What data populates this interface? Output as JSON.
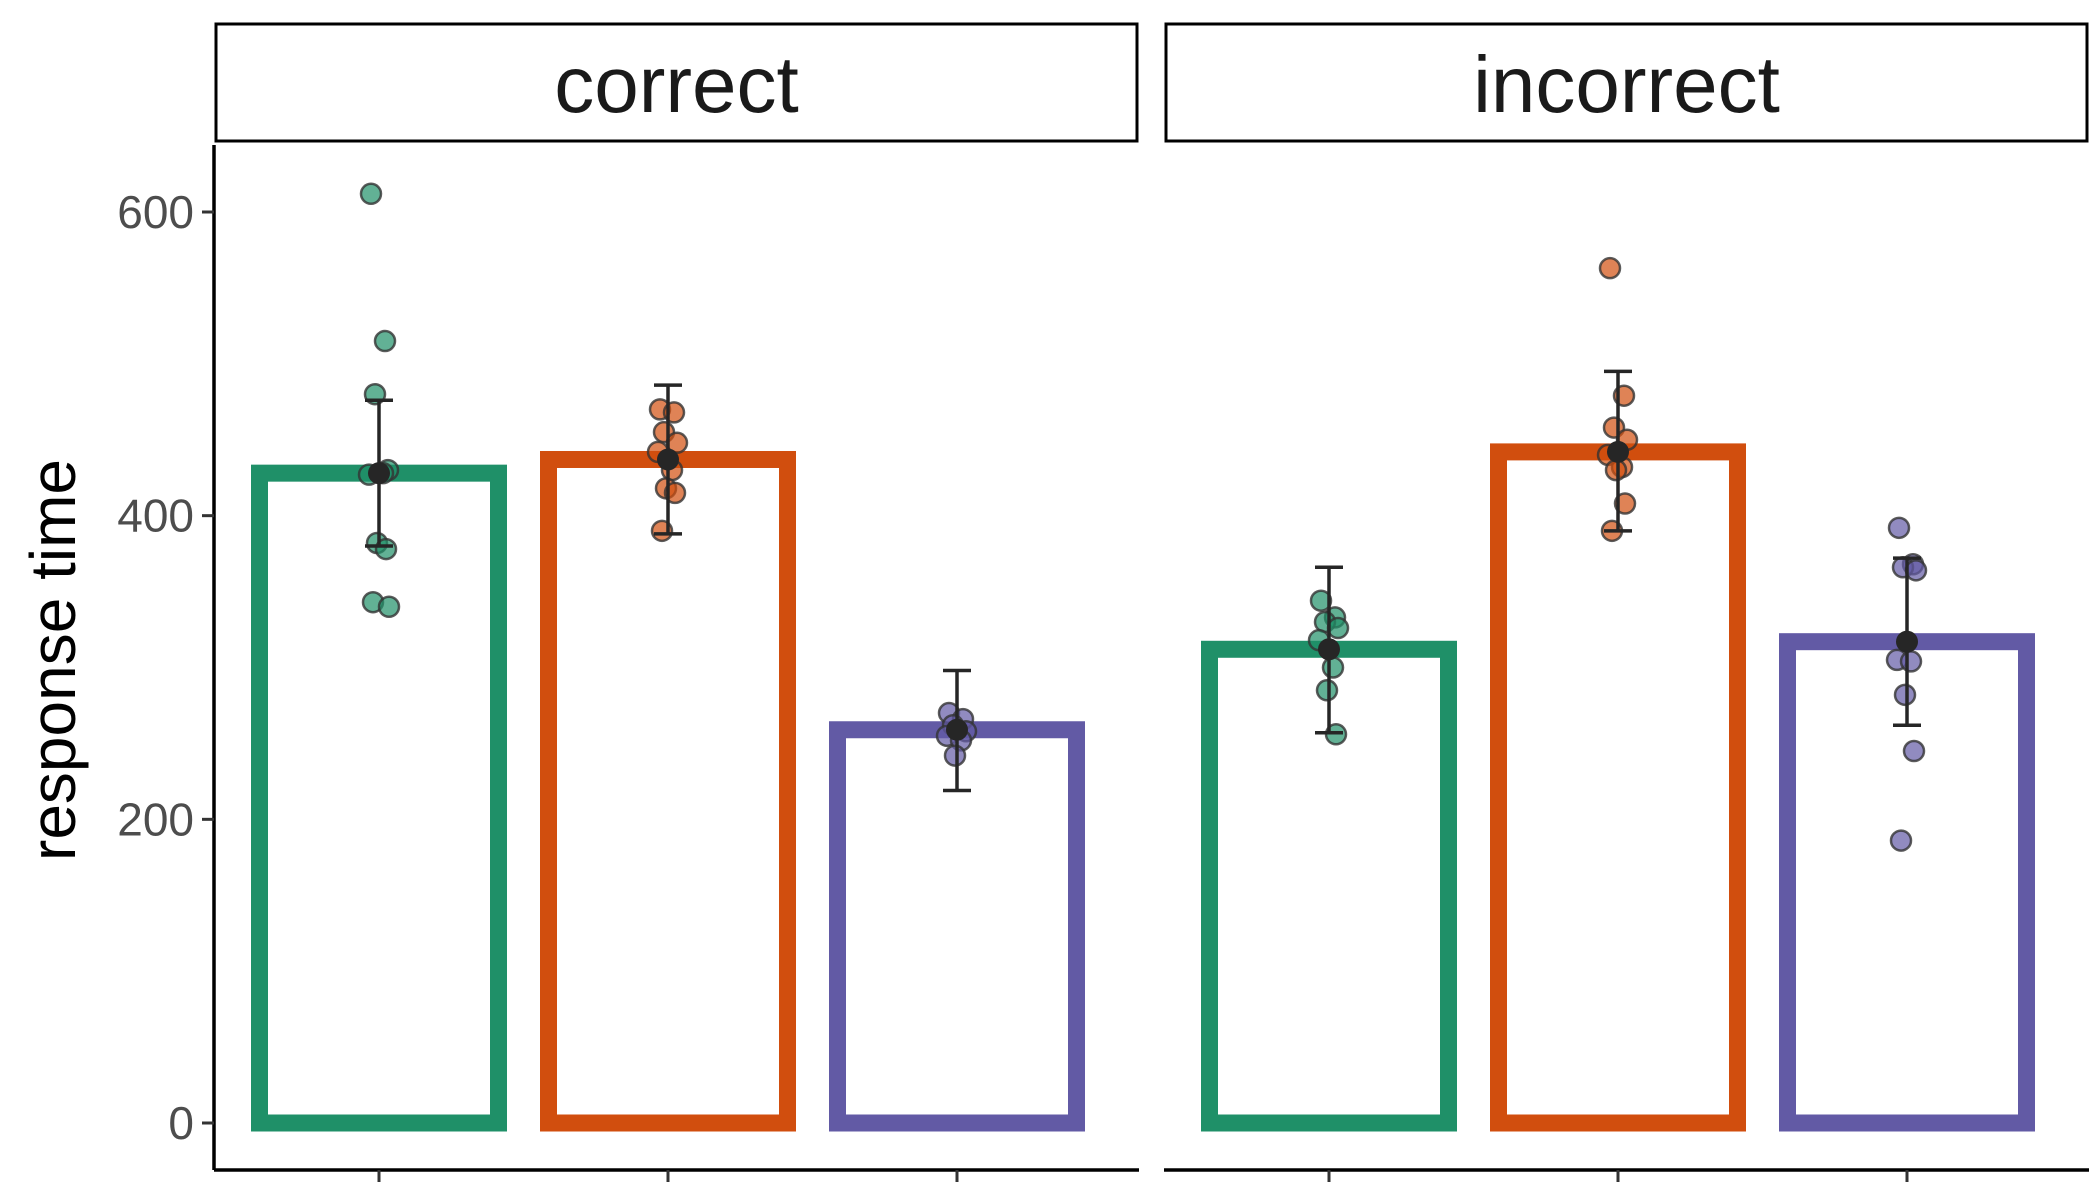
{
  "chart_data": {
    "type": "bar",
    "ylabel": "response time",
    "xlabel": "",
    "ylim": [
      0,
      640
    ],
    "yticks": [
      0,
      200,
      400,
      600
    ],
    "groups": [
      "g1",
      "g2",
      "g3"
    ],
    "colors": [
      "#1f9068",
      "#d14e0e",
      "#625aa5"
    ],
    "panels": [
      {
        "label": "correct",
        "bars": [
          {
            "mean": 428,
            "err_low": 380,
            "err_high": 476,
            "points": [
              612,
              515,
              480,
              430,
              427,
              428,
              382,
              378,
              343,
              340
            ]
          },
          {
            "mean": 437,
            "err_low": 388,
            "err_high": 486,
            "points": [
              470,
              468,
              455,
              448,
              442,
              430,
              418,
              415,
              390
            ]
          },
          {
            "mean": 259,
            "err_low": 219,
            "err_high": 298,
            "points": [
              270,
              266,
              262,
              258,
              255,
              252,
              242
            ]
          }
        ]
      },
      {
        "label": "incorrect",
        "bars": [
          {
            "mean": 312,
            "err_low": 257,
            "err_high": 366,
            "points": [
              344,
              333,
              330,
              326,
              318,
              300,
              285,
              256
            ]
          },
          {
            "mean": 442,
            "err_low": 390,
            "err_high": 495,
            "points": [
              563,
              479,
              458,
              450,
              440,
              432,
              430,
              408,
              390
            ]
          },
          {
            "mean": 317,
            "err_low": 262,
            "err_high": 372,
            "points": [
              392,
              368,
              366,
              364,
              305,
              304,
              282,
              245,
              186
            ]
          }
        ]
      }
    ]
  }
}
